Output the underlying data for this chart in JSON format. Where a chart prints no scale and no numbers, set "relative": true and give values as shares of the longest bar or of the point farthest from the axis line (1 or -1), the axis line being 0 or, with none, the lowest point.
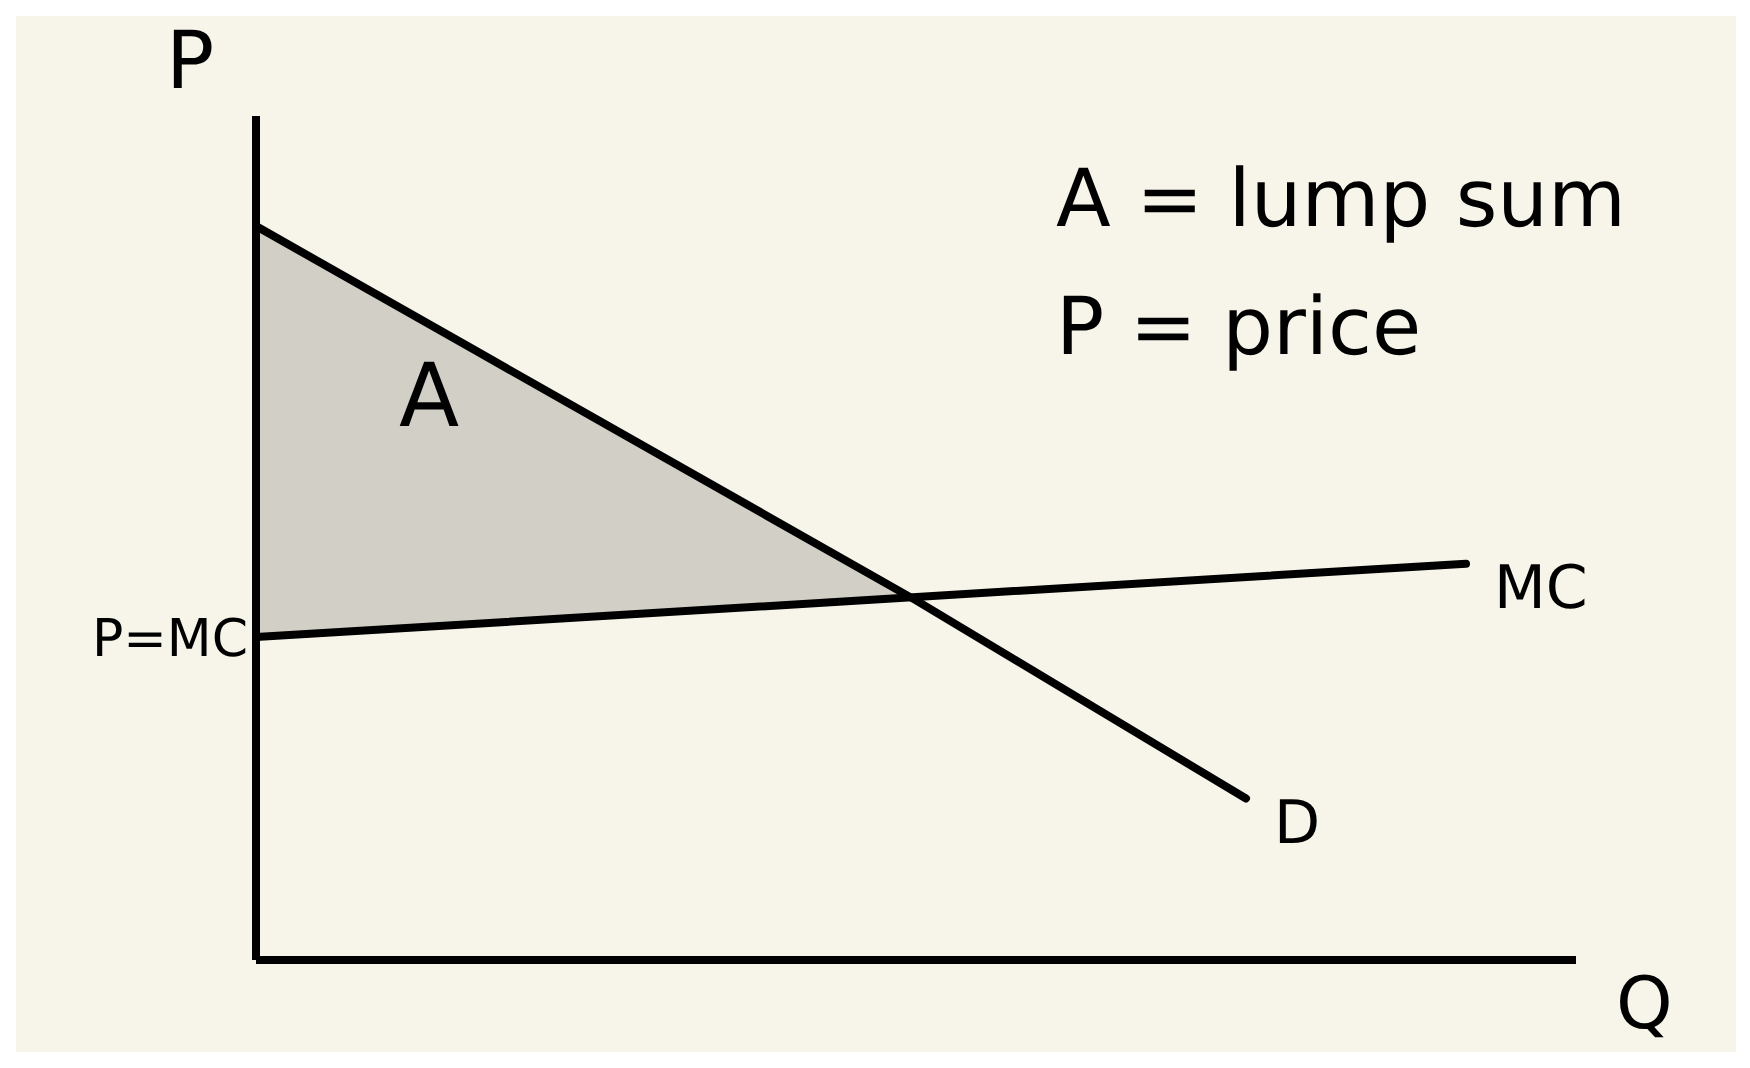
{
  "chart_data": {
    "type": "line",
    "xlabel": "Q",
    "ylabel": "P",
    "relative": true,
    "categories": [
      null,
      null,
      null,
      null,
      null,
      null,
      null,
      null,
      null,
      null,
      null,
      null,
      null
    ],
    "series": [
      {
        "name": "D",
        "color": "#000000",
        "values": [
          1,
          null,
          0.83,
          null,
          null,
          null,
          0.49,
          null,
          null,
          0.22,
          null,
          null,
          null
        ],
        "lower": [
          0.44,
          null,
          0.455,
          null,
          null,
          null,
          0.49,
          null,
          null,
          null,
          null,
          null,
          null
        ],
        "upper": [
          1,
          null,
          0.83,
          null,
          null,
          null,
          0.49,
          null,
          null,
          null,
          null,
          null,
          null
        ]
      },
      {
        "name": "MC",
        "color": "#000000",
        "values": [
          0.44,
          null,
          null,
          null,
          null,
          null,
          null,
          null,
          null,
          null,
          null,
          0.54,
          null
        ]
      }
    ],
    "annotations": [
      "P=MC",
      "A",
      "A = lump sum",
      "P = price"
    ]
  }
}
